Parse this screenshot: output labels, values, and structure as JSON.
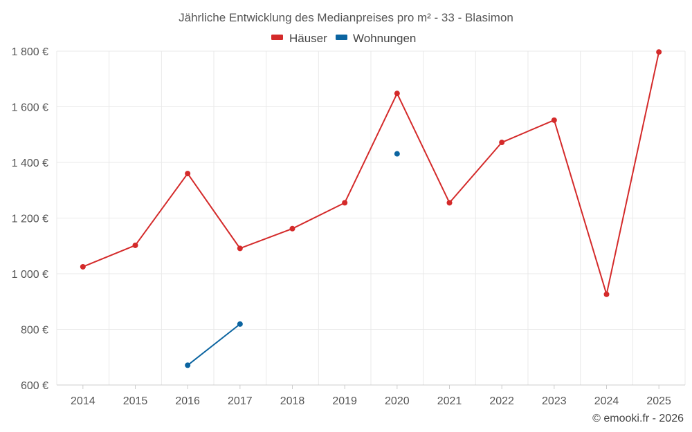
{
  "chart_data": {
    "type": "line",
    "title": "Jährliche Entwicklung des Medianpreises pro m² - 33 - Blasimon",
    "categories": [
      "2014",
      "2015",
      "2016",
      "2017",
      "2018",
      "2019",
      "2020",
      "2021",
      "2022",
      "2023",
      "2024",
      "2025"
    ],
    "y_ticks": [
      600,
      800,
      1000,
      1200,
      1400,
      1600,
      1800
    ],
    "y_tick_labels": [
      "600 €",
      "800 €",
      "1 000 €",
      "1 200 €",
      "1 400 €",
      "1 600 €",
      "1 800 €"
    ],
    "ylim": [
      600,
      1800
    ],
    "grid": true,
    "legend_position": "top-center",
    "series": [
      {
        "name": "Häuser",
        "color": "#d42a2a",
        "values": [
          1025,
          1102,
          1360,
          1091,
          1162,
          1255,
          1648,
          1255,
          1472,
          1552,
          926,
          1797
        ]
      },
      {
        "name": "Wohnungen",
        "color": "#0b64a0",
        "values": [
          null,
          null,
          671,
          819,
          null,
          null,
          1431,
          null,
          null,
          null,
          null,
          null
        ]
      }
    ],
    "credit": "© emooki.fr - 2026"
  }
}
